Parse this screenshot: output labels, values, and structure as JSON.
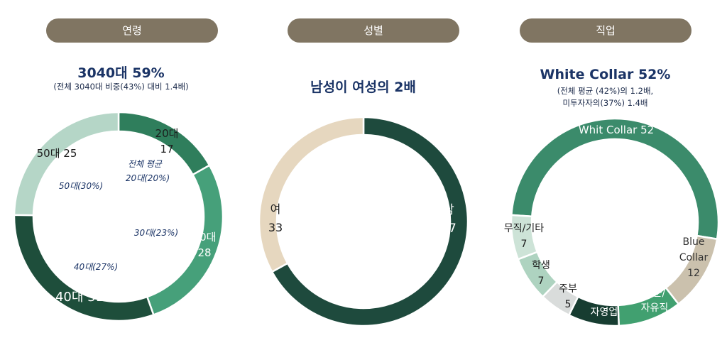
{
  "colors": {
    "pill": "#807562",
    "headline": "#1b3466",
    "age_20s": "#2f7e5c",
    "age_30s": "#46a07a",
    "age_40s": "#1e4e3b",
    "age_50s": "#b5d6c7",
    "male": "#1e4a3d",
    "female": "#e6d7bf",
    "white_collar": "#3b8b6b",
    "blue_collar": "#cbc1ad",
    "professional": "#41a070",
    "self_employed": "#173d31",
    "housewife": "#d9dcdb",
    "student": "#aed3c0",
    "none_other": "#cde3d7"
  },
  "panels": {
    "age": {
      "title": "연령",
      "headline": "3040대 59%",
      "subline": "(전체 3040대 비중(43%) 대비 1.4배)",
      "avg_title": "전체 평균",
      "avg_labels": [
        "20대(20%)",
        "30대(23%)",
        "40대(27%)",
        "50대(30%)"
      ]
    },
    "gender": {
      "title": "성별",
      "headline": "남성이 여성의 2배"
    },
    "job": {
      "title": "직업",
      "headline": "White Collar 52%",
      "subline1": "(전체 평균 (42%)의 1.2배,",
      "subline2": "미투자자의(37%) 1.4배"
    }
  },
  "chart_data": [
    {
      "type": "pie",
      "title": "연령",
      "categories": [
        "20대",
        "30대",
        "40대",
        "50대"
      ],
      "values": [
        17,
        28,
        31,
        25
      ],
      "labels": [
        [
          "20대",
          "17"
        ],
        [
          "30대",
          "28"
        ],
        [
          "40대 31"
        ],
        [
          "50대 25"
        ]
      ]
    },
    {
      "type": "pie",
      "title": "성별",
      "categories": [
        "남",
        "여"
      ],
      "values": [
        67,
        33
      ],
      "labels": [
        [
          "남",
          "67"
        ],
        [
          "여",
          "33"
        ]
      ]
    },
    {
      "type": "pie",
      "title": "직업",
      "categories": [
        "Whit Collar",
        "Blue Collar",
        "전문/자유직",
        "자영업",
        "주부",
        "학생",
        "무직/기타"
      ],
      "values": [
        52,
        12,
        10,
        8,
        5,
        7,
        7
      ],
      "labels": [
        [
          "Whit Collar 52"
        ],
        [
          "Blue",
          "Collar",
          "12"
        ],
        [
          "전문/",
          "자유직",
          "10"
        ],
        [
          "자영업",
          "8"
        ],
        [
          "주부",
          "5"
        ],
        [
          "학생",
          "7"
        ],
        [
          "무직/기타",
          "7"
        ]
      ]
    }
  ]
}
